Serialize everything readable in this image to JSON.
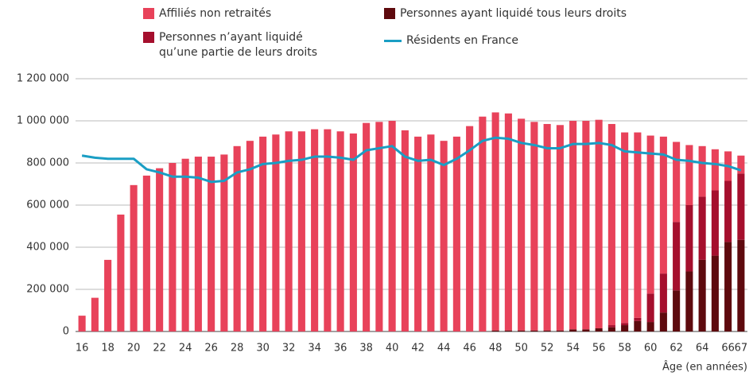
{
  "chart_data": {
    "type": "stacked-bar-line",
    "x_label": "Âge (en années)",
    "categories": [
      "16",
      null,
      "18",
      null,
      "20",
      null,
      "22",
      null,
      "24",
      null,
      "26",
      null,
      "28",
      null,
      "30",
      null,
      "32",
      null,
      "34",
      null,
      "36",
      null,
      "38",
      null,
      "40",
      null,
      "42",
      null,
      "44",
      null,
      "46",
      null,
      "48",
      null,
      "50",
      null,
      "52",
      null,
      "54",
      null,
      "56",
      null,
      "58",
      null,
      "60",
      null,
      "62",
      null,
      "64",
      null,
      "66",
      "67"
    ],
    "series": [
      {
        "name": "Affiliés non retraités",
        "type": "bar",
        "color": "#e8425a",
        "values": [
          75000,
          160000,
          340000,
          555000,
          695000,
          740000,
          775000,
          800000,
          820000,
          830000,
          830000,
          840000,
          880000,
          905000,
          925000,
          935000,
          950000,
          950000,
          960000,
          960000,
          950000,
          940000,
          990000,
          995000,
          1000000,
          955000,
          925000,
          935000,
          905000,
          925000,
          975000,
          1020000,
          1035000,
          1030000,
          1005000,
          990000,
          980000,
          975000,
          990000,
          990000,
          990000,
          955000,
          905000,
          880000,
          750000,
          650000,
          380000,
          285000,
          240000,
          195000,
          140000,
          85000
        ]
      },
      {
        "name": "Personnes n’ayant liquidé qu’une partie de leurs droits",
        "type": "bar",
        "color": "#a50f2d",
        "values": [
          0,
          0,
          0,
          0,
          0,
          0,
          0,
          0,
          0,
          0,
          0,
          0,
          0,
          0,
          0,
          0,
          0,
          0,
          0,
          0,
          0,
          0,
          0,
          0,
          0,
          0,
          0,
          0,
          0,
          0,
          0,
          0,
          0,
          0,
          0,
          0,
          0,
          0,
          0,
          0,
          0,
          10000,
          10000,
          15000,
          135000,
          185000,
          325000,
          315000,
          300000,
          310000,
          290000,
          315000
        ]
      },
      {
        "name": "Personnes ayant liquidé tous leurs droits",
        "type": "bar",
        "color": "#5e0a0e",
        "values": [
          0,
          0,
          0,
          0,
          0,
          0,
          0,
          0,
          0,
          0,
          0,
          0,
          0,
          0,
          0,
          0,
          0,
          0,
          0,
          0,
          0,
          0,
          0,
          0,
          0,
          0,
          0,
          0,
          0,
          0,
          0,
          0,
          5000,
          5000,
          5000,
          5000,
          5000,
          5000,
          10000,
          10000,
          15000,
          20000,
          30000,
          50000,
          45000,
          90000,
          195000,
          285000,
          340000,
          360000,
          425000,
          435000
        ]
      },
      {
        "name": "Résidents en France",
        "type": "line",
        "color": "#1a9ec4",
        "values": [
          835000,
          825000,
          820000,
          820000,
          820000,
          770000,
          755000,
          735000,
          735000,
          730000,
          710000,
          715000,
          755000,
          770000,
          795000,
          800000,
          810000,
          815000,
          830000,
          830000,
          825000,
          815000,
          860000,
          870000,
          880000,
          830000,
          810000,
          815000,
          790000,
          820000,
          860000,
          905000,
          920000,
          915000,
          895000,
          885000,
          870000,
          870000,
          890000,
          890000,
          895000,
          885000,
          855000,
          850000,
          845000,
          840000,
          815000,
          810000,
          800000,
          795000,
          785000,
          765000
        ]
      }
    ],
    "ylim": [
      0,
      1200000
    ],
    "yticks": [
      0,
      {
        "value": 200000,
        "label": "200 000"
      },
      {
        "value": 400000,
        "label": "400 000"
      },
      {
        "value": 600000,
        "label": "600 000"
      },
      {
        "value": 800000,
        "label": "800 000"
      },
      {
        "value": 1000000,
        "label": "1 000 000"
      },
      {
        "value": 1200000,
        "label": "1 200 000"
      }
    ],
    "grid": true
  }
}
